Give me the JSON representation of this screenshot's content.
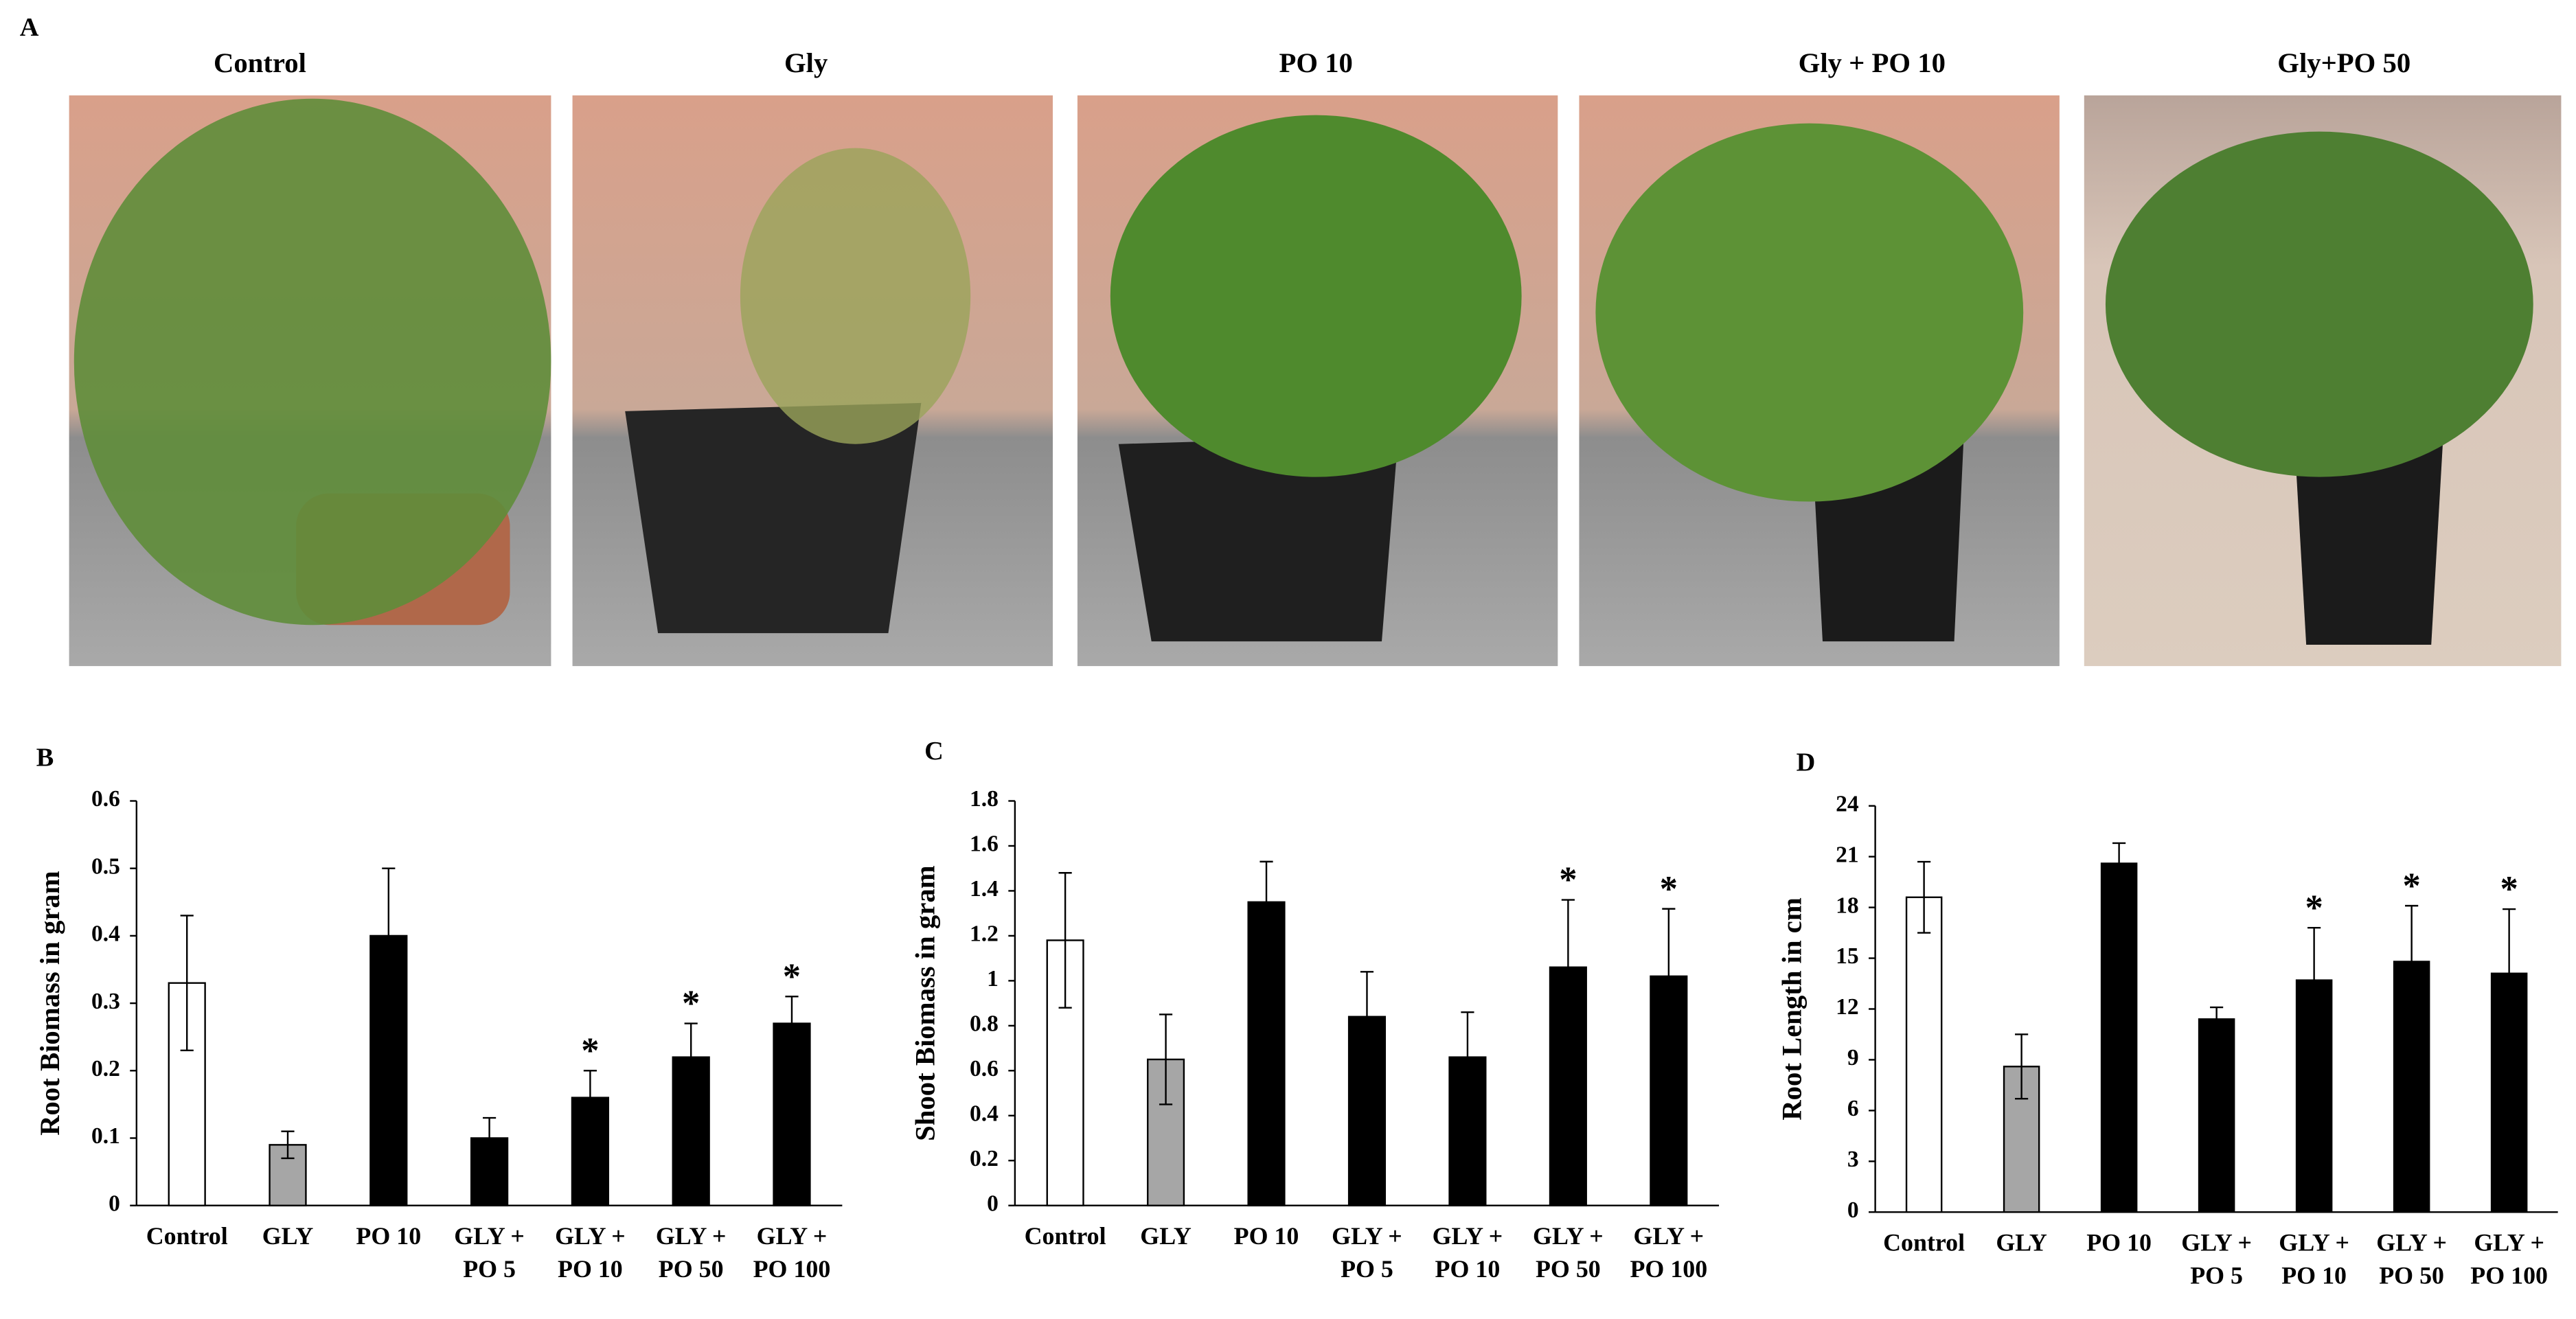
{
  "photos": {
    "label": "A",
    "captions": [
      "Control",
      "Gly",
      "PO 10",
      "Gly + PO 10",
      "Gly+PO 50"
    ]
  },
  "chart_data": [
    {
      "type": "bar",
      "panel_label": "B",
      "y_label": "Root Biomass in gram",
      "categories": [
        [
          "Control"
        ],
        [
          "GLY"
        ],
        [
          "PO 10"
        ],
        [
          "GLY +",
          "PO 5"
        ],
        [
          "GLY +",
          "PO 10"
        ],
        [
          "GLY +",
          "PO 50"
        ],
        [
          "GLY +",
          "PO 100"
        ]
      ],
      "values": [
        0.33,
        0.09,
        0.4,
        0.1,
        0.16,
        0.22,
        0.27
      ],
      "errors": [
        0.1,
        0.02,
        0.1,
        0.03,
        0.04,
        0.05,
        0.04
      ],
      "colors": [
        "#ffffff",
        "#a6a6a6",
        "#000000",
        "#000000",
        "#000000",
        "#000000",
        "#000000"
      ],
      "significance": [
        null,
        null,
        null,
        null,
        "*",
        "*",
        "*"
      ],
      "ylim": [
        0,
        0.6
      ],
      "yticks": [
        0,
        0.1,
        0.2,
        0.3,
        0.4,
        0.5,
        0.6
      ]
    },
    {
      "type": "bar",
      "panel_label": "C",
      "y_label": "Shoot Biomass in gram",
      "categories": [
        [
          "Control"
        ],
        [
          "GLY"
        ],
        [
          "PO 10"
        ],
        [
          "GLY +",
          "PO 5"
        ],
        [
          "GLY +",
          "PO 10"
        ],
        [
          "GLY +",
          "PO 50"
        ],
        [
          "GLY +",
          "PO 100"
        ]
      ],
      "values": [
        1.18,
        0.65,
        1.35,
        0.84,
        0.66,
        1.06,
        1.02
      ],
      "errors": [
        0.3,
        0.2,
        0.18,
        0.2,
        0.2,
        0.3,
        0.3
      ],
      "colors": [
        "#ffffff",
        "#a6a6a6",
        "#000000",
        "#000000",
        "#000000",
        "#000000",
        "#000000"
      ],
      "significance": [
        null,
        null,
        null,
        null,
        null,
        "*",
        "*"
      ],
      "ylim": [
        0,
        1.8
      ],
      "yticks": [
        0,
        0.2,
        0.4,
        0.6,
        0.8,
        1,
        1.2,
        1.4,
        1.6,
        1.8
      ]
    },
    {
      "type": "bar",
      "panel_label": "D",
      "y_label": "Root Length in cm",
      "categories": [
        [
          "Control"
        ],
        [
          "GLY"
        ],
        [
          "PO 10"
        ],
        [
          "GLY +",
          "PO 5"
        ],
        [
          "GLY +",
          "PO 10"
        ],
        [
          "GLY +",
          "PO 50"
        ],
        [
          "GLY +",
          "PO 100"
        ]
      ],
      "values": [
        18.6,
        8.6,
        20.6,
        11.4,
        13.7,
        14.8,
        14.1
      ],
      "errors": [
        2.1,
        1.9,
        1.2,
        0.7,
        3.1,
        3.3,
        3.8
      ],
      "colors": [
        "#ffffff",
        "#a6a6a6",
        "#000000",
        "#000000",
        "#000000",
        "#000000",
        "#000000"
      ],
      "significance": [
        null,
        null,
        null,
        null,
        "*",
        "*",
        "*"
      ],
      "ylim": [
        0,
        24
      ],
      "yticks": [
        0,
        3,
        6,
        9,
        12,
        15,
        18,
        21,
        24
      ]
    }
  ]
}
